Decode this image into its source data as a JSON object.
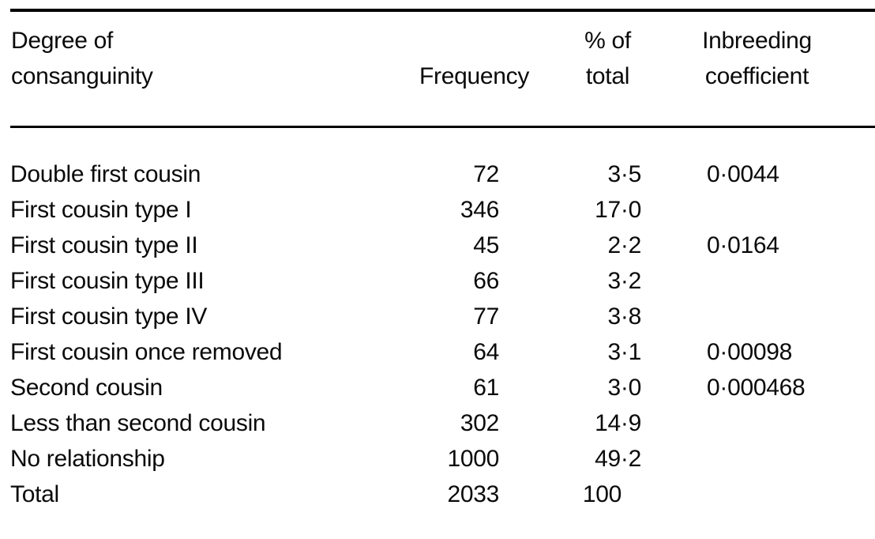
{
  "table": {
    "headers": [
      {
        "lines": [
          "Degree of",
          "consanguinity"
        ]
      },
      {
        "lines": [
          "Frequency"
        ]
      },
      {
        "lines": [
          "% of",
          "total"
        ]
      },
      {
        "lines": [
          "Inbreeding",
          "coefficient"
        ]
      }
    ],
    "rows": [
      {
        "degree": "Double first cousin",
        "frequency": "72",
        "pct": "3·5",
        "coefficient": "0·0044"
      },
      {
        "degree": "First cousin type I",
        "frequency": "346",
        "pct": "17·0",
        "coefficient": ""
      },
      {
        "degree": "First cousin type II",
        "frequency": "45",
        "pct": "2·2",
        "coefficient": "0·0164"
      },
      {
        "degree": "First cousin type III",
        "frequency": "66",
        "pct": "3·2",
        "coefficient": ""
      },
      {
        "degree": "First cousin type IV",
        "frequency": "77",
        "pct": "3·8",
        "coefficient": ""
      },
      {
        "degree": "First cousin once removed",
        "frequency": "64",
        "pct": "3·1",
        "coefficient": "0·00098"
      },
      {
        "degree": "Second cousin",
        "frequency": "61",
        "pct": "3·0",
        "coefficient": "0·000468"
      },
      {
        "degree": "Less than second cousin",
        "frequency": "302",
        "pct": "14·9",
        "coefficient": ""
      },
      {
        "degree": "No relationship",
        "frequency": "1000",
        "pct": "49·2",
        "coefficient": ""
      },
      {
        "degree": "Total",
        "frequency": "2033",
        "pct": "100",
        "coefficient": ""
      }
    ],
    "decimal_separator": "·",
    "text_color": "#0a0a0a",
    "rule_color": "#000000"
  }
}
